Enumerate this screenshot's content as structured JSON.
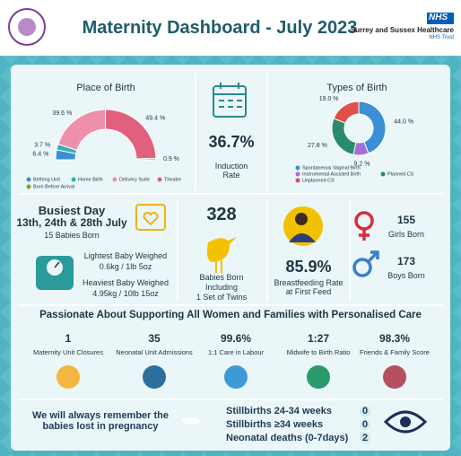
{
  "header": {
    "title": "Maternity Dashboard - July 2023",
    "nhs": "NHS",
    "trust": "Surrey and Sussex Healthcare",
    "trust_sub": "NHS Trust"
  },
  "place_of_birth": {
    "title": "Place of Birth",
    "segments": [
      {
        "name": "Birthing Unit",
        "color": "#3b8fd4",
        "value": 6.4,
        "label": "6.4 %"
      },
      {
        "name": "Home Birth",
        "color": "#2fb3b0",
        "value": 3.7,
        "label": "3.7 %"
      },
      {
        "name": "Delivery Suite",
        "color": "#f08fab",
        "value": 39.6,
        "label": "39.6 %"
      },
      {
        "name": "Theatre",
        "color": "#e0607e",
        "value": 49.4,
        "label": "49.4 %"
      },
      {
        "name": "Born Before Arrival",
        "color": "#8a9a3b",
        "value": 0.9,
        "label": "0.9 %"
      }
    ]
  },
  "induction": {
    "value": "36.7%",
    "label": "Induction Rate"
  },
  "types_of_birth": {
    "title": "Types of Birth",
    "segments": [
      {
        "name": "Spontaneous Vaginal Birth",
        "color": "#3b8fd4",
        "value": 44.0,
        "label": "44.0 %"
      },
      {
        "name": "Instrumental Assisted Birth",
        "color": "#a270d8",
        "value": 9.2,
        "label": "9.2 %"
      },
      {
        "name": "Planned CS",
        "color": "#2a8a6c",
        "value": 27.8,
        "label": "27.8 %"
      },
      {
        "name": "Unplanned CS",
        "color": "#e0504a",
        "value": 19.0,
        "label": "19.0 %"
      }
    ]
  },
  "busiest_day": {
    "title": "Busiest Day",
    "dates": "13th, 24th & 28th July",
    "babies": "15 Babies Born"
  },
  "weights": {
    "lightest_label": "Lightest Baby Weighed",
    "lightest": "0.6kg / 1lb 5oz",
    "heaviest_label": "Heaviest Baby Weighed",
    "heaviest": "4.95kg / 10lb 15oz"
  },
  "babies_born": {
    "value": "328",
    "label": "Babies Born",
    "note_1": "Including",
    "note_2": "1 Set of Twins"
  },
  "breastfeeding": {
    "value": "85.9%",
    "label": "Breastfeeding Rate at First Feed"
  },
  "gender": {
    "girls": {
      "value": "155",
      "label": "Girls Born"
    },
    "boys": {
      "value": "173",
      "label": "Boys Born"
    }
  },
  "care": {
    "title": "Passionate About Supporting All Women and Families with Personalised Care",
    "stats": [
      {
        "value": "1",
        "label": "Maternity Unit Closures"
      },
      {
        "value": "35",
        "label": "Neonatal Unit Admissions"
      },
      {
        "value": "99.6%",
        "label": "1:1 Care in Labour"
      },
      {
        "value": "1:27",
        "label": "Midwife to Birth Ratio"
      },
      {
        "value": "98.3%",
        "label": "Friends & Family Score"
      }
    ]
  },
  "remembrance": {
    "message": "We will always remember the babies lost in pregnancy",
    "rows": [
      {
        "label": "Stillbirths 24-34 weeks",
        "value": "0"
      },
      {
        "label": "Stillbirths ≥34 weeks",
        "value": "0"
      },
      {
        "label": "Neonatal deaths (0-7days)",
        "value": "2"
      }
    ]
  }
}
